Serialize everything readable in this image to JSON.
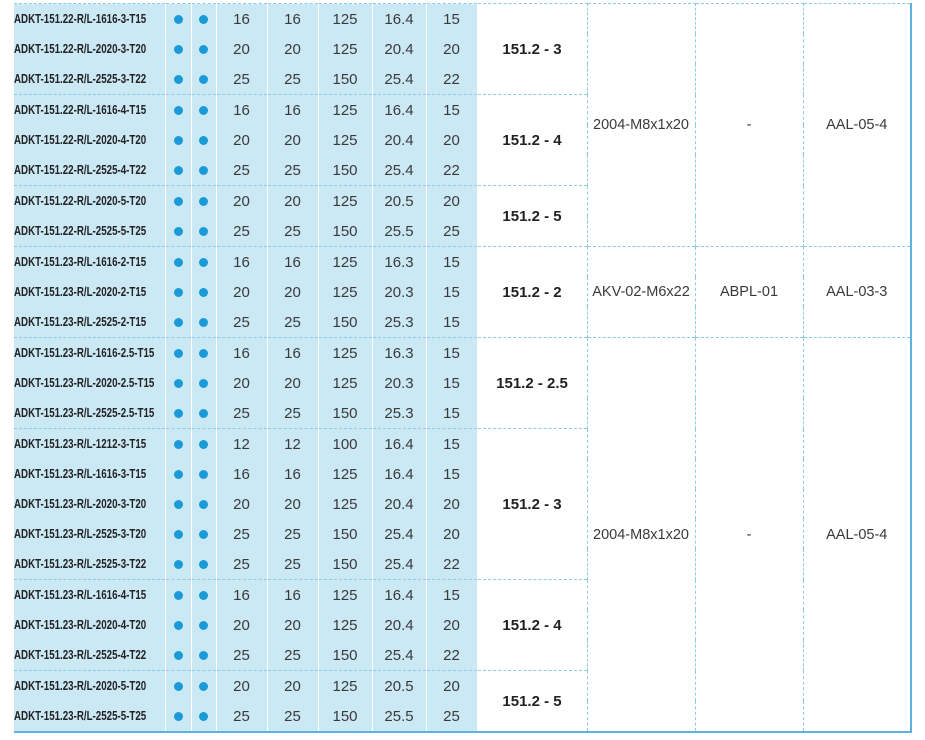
{
  "table": {
    "spans": [
      {
        "cells": [
          "2004-M8x1x20",
          "-",
          "AAL-05-4"
        ],
        "groups": [
          {
            "label": "151.2 - 3",
            "rows": [
              [
                "ADKT-151.22-R/L-1616-3-T15",
                "16",
                "16",
                "125",
                "16.4",
                "15"
              ],
              [
                "ADKT-151.22-R/L-2020-3-T20",
                "20",
                "20",
                "125",
                "20.4",
                "20"
              ],
              [
                "ADKT-151.22-R/L-2525-3-T22",
                "25",
                "25",
                "150",
                "25.4",
                "22"
              ]
            ]
          },
          {
            "label": "151.2 - 4",
            "rows": [
              [
                "ADKT-151.22-R/L-1616-4-T15",
                "16",
                "16",
                "125",
                "16.4",
                "15"
              ],
              [
                "ADKT-151.22-R/L-2020-4-T20",
                "20",
                "20",
                "125",
                "20.4",
                "20"
              ],
              [
                "ADKT-151.22-R/L-2525-4-T22",
                "25",
                "25",
                "150",
                "25.4",
                "22"
              ]
            ]
          },
          {
            "label": "151.2 - 5",
            "rows": [
              [
                "ADKT-151.22-R/L-2020-5-T20",
                "20",
                "20",
                "125",
                "20.5",
                "20"
              ],
              [
                "ADKT-151.22-R/L-2525-5-T25",
                "25",
                "25",
                "150",
                "25.5",
                "25"
              ]
            ]
          }
        ]
      },
      {
        "cells": [
          "AKV-02-M6x22",
          "ABPL-01",
          "AAL-03-3"
        ],
        "groups": [
          {
            "label": "151.2 - 2",
            "rows": [
              [
                "ADKT-151.23-R/L-1616-2-T15",
                "16",
                "16",
                "125",
                "16.3",
                "15"
              ],
              [
                "ADKT-151.23-R/L-2020-2-T15",
                "20",
                "20",
                "125",
                "20.3",
                "15"
              ],
              [
                "ADKT-151.23-R/L-2525-2-T15",
                "25",
                "25",
                "150",
                "25.3",
                "15"
              ]
            ]
          }
        ]
      },
      {
        "cells": [
          "2004-M8x1x20",
          "-",
          "AAL-05-4"
        ],
        "groups": [
          {
            "label": "151.2 - 2.5",
            "rows": [
              [
                "ADKT-151.23-R/L-1616-2.5-T15",
                "16",
                "16",
                "125",
                "16.3",
                "15"
              ],
              [
                "ADKT-151.23-R/L-2020-2.5-T15",
                "20",
                "20",
                "125",
                "20.3",
                "15"
              ],
              [
                "ADKT-151.23-R/L-2525-2.5-T15",
                "25",
                "25",
                "150",
                "25.3",
                "15"
              ]
            ]
          },
          {
            "label": "151.2 - 3",
            "rows": [
              [
                "ADKT-151.23-R/L-1212-3-T15",
                "12",
                "12",
                "100",
                "16.4",
                "15"
              ],
              [
                "ADKT-151.23-R/L-1616-3-T15",
                "16",
                "16",
                "125",
                "16.4",
                "15"
              ],
              [
                "ADKT-151.23-R/L-2020-3-T20",
                "20",
                "20",
                "125",
                "20.4",
                "20"
              ],
              [
                "ADKT-151.23-R/L-2525-3-T20",
                "25",
                "25",
                "150",
                "25.4",
                "20"
              ],
              [
                "ADKT-151.23-R/L-2525-3-T22",
                "25",
                "25",
                "150",
                "25.4",
                "22"
              ]
            ]
          },
          {
            "label": "151.2 - 4",
            "rows": [
              [
                "ADKT-151.23-R/L-1616-4-T15",
                "16",
                "16",
                "125",
                "16.4",
                "15"
              ],
              [
                "ADKT-151.23-R/L-2020-4-T20",
                "20",
                "20",
                "125",
                "20.4",
                "20"
              ],
              [
                "ADKT-151.23-R/L-2525-4-T22",
                "25",
                "25",
                "150",
                "25.4",
                "22"
              ]
            ]
          },
          {
            "label": "151.2 - 5",
            "rows": [
              [
                "ADKT-151.23-R/L-2020-5-T20",
                "20",
                "20",
                "125",
                "20.5",
                "20"
              ],
              [
                "ADKT-151.23-R/L-2525-5-T25",
                "25",
                "25",
                "150",
                "25.5",
                "25"
              ]
            ]
          }
        ]
      }
    ]
  }
}
